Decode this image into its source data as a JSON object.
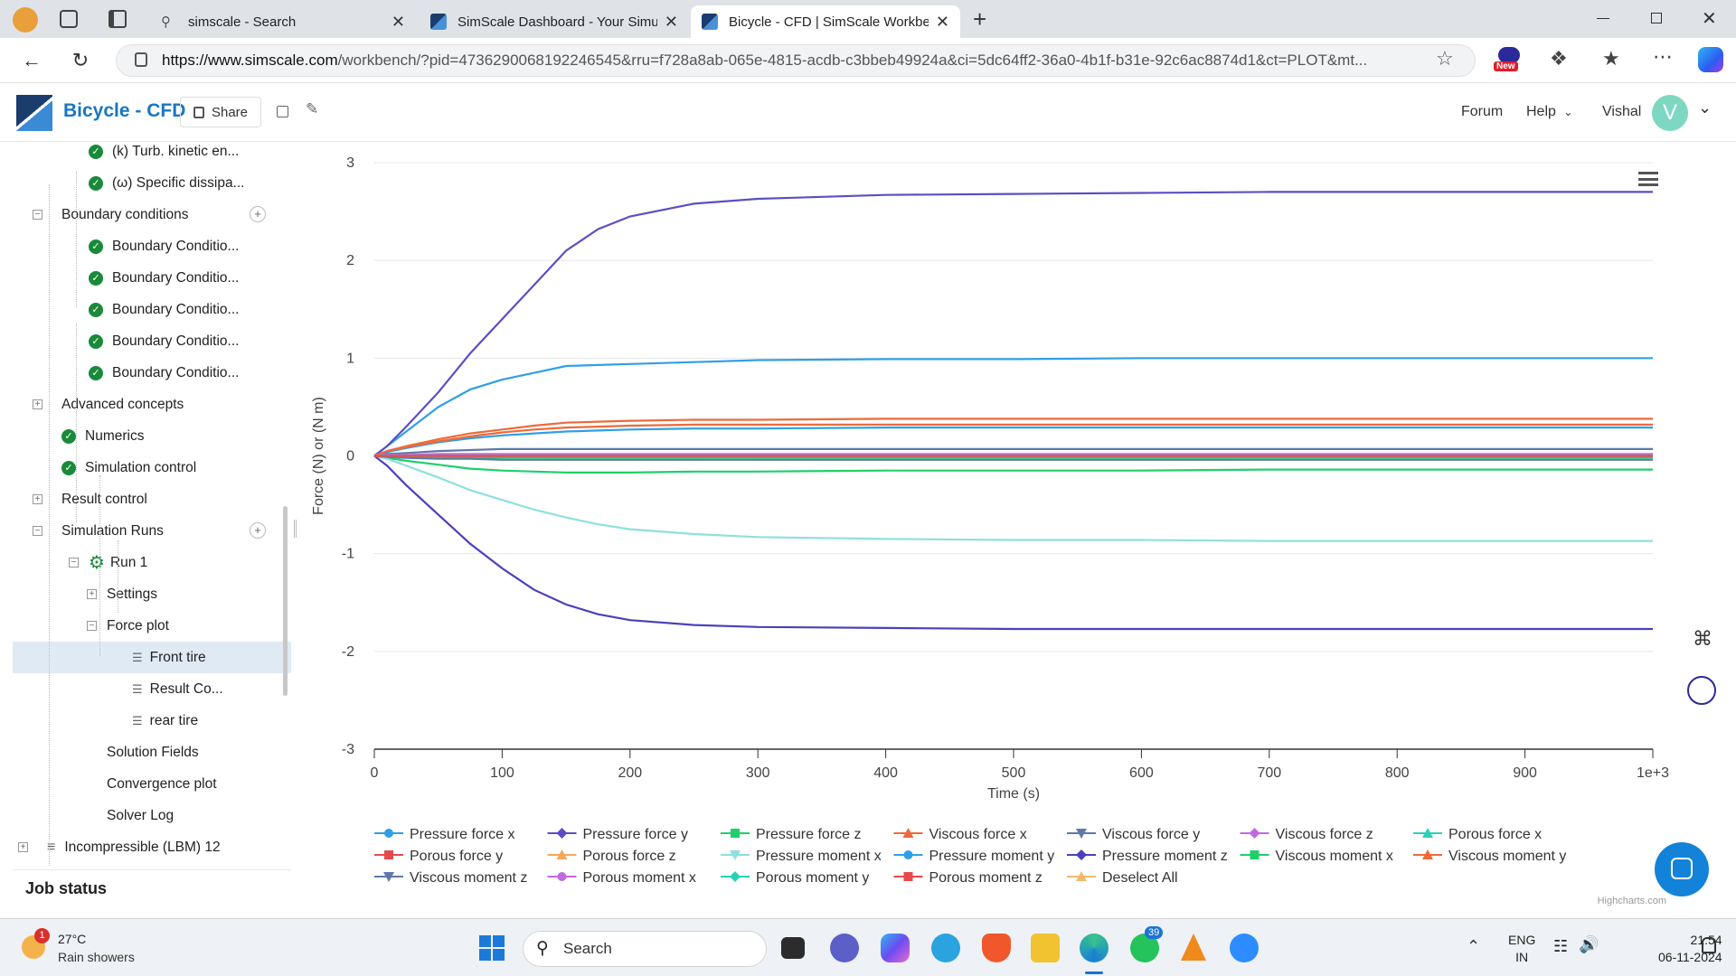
{
  "browser": {
    "tabs": [
      {
        "title": "simscale - Search",
        "icon": "search-icon"
      },
      {
        "title": "SimScale Dashboard - Your Simul",
        "icon": "simscale-logo-icon"
      },
      {
        "title": "Bicycle - CFD | SimScale Workben",
        "icon": "simscale-logo-icon",
        "active": true
      }
    ],
    "url_host": "https://www.simscale.com",
    "url_rest": "/workbench/?pid=4736290068192246545&rru=f728a8ab-065e-4815-acdb-c3bbeb49924a&ci=5dc64ff2-36a0-4b1f-b31e-92c6ac8874d1&ct=PLOT&mt...",
    "new_badge": "New"
  },
  "app": {
    "title": "Bicycle - CFD",
    "share_label": "Share",
    "forum_label": "Forum",
    "help_label": "Help",
    "user_name": "Vishal",
    "avatar_letter": "V"
  },
  "tree": {
    "items": [
      {
        "label": "(k) Turb. kinetic en...",
        "level": 3,
        "check": true
      },
      {
        "label": "(ω) Specific dissipa...",
        "level": 3,
        "check": true
      },
      {
        "label": "Boundary conditions",
        "level": 2,
        "toggle": "-",
        "add": true
      },
      {
        "label": "Boundary Conditio...",
        "level": 3,
        "check": true
      },
      {
        "label": "Boundary Conditio...",
        "level": 3,
        "check": true
      },
      {
        "label": "Boundary Conditio...",
        "level": 3,
        "check": true
      },
      {
        "label": "Boundary Conditio...",
        "level": 3,
        "check": true
      },
      {
        "label": "Boundary Conditio...",
        "level": 3,
        "check": true
      },
      {
        "label": "Advanced concepts",
        "level": 2,
        "toggle": "+"
      },
      {
        "label": "Numerics",
        "level": 2,
        "check": true
      },
      {
        "label": "Simulation control",
        "level": 2,
        "check": true
      },
      {
        "label": "Result control",
        "level": 2,
        "toggle": "+"
      },
      {
        "label": "Simulation Runs",
        "level": 2,
        "toggle": "-",
        "add": true
      },
      {
        "label": "Run 1",
        "level": 3,
        "toggle": "-",
        "gear": true
      },
      {
        "label": "Settings",
        "level": 4,
        "toggle": "+"
      },
      {
        "label": "Force plot",
        "level": 4,
        "toggle": "-"
      },
      {
        "label": "Front tire",
        "level": 5,
        "plot": true,
        "selected": true
      },
      {
        "label": "Result Co...",
        "level": 5,
        "plot": true
      },
      {
        "label": "rear tire",
        "level": 5,
        "plot": true
      },
      {
        "label": "Solution Fields",
        "level": 4
      },
      {
        "label": "Convergence plot",
        "level": 4
      },
      {
        "label": "Solver Log",
        "level": 4
      },
      {
        "label": "Incompressible (LBM) 12",
        "level": 1,
        "toggle": "+",
        "list": true
      }
    ],
    "job_status": "Job status"
  },
  "chart_data": {
    "type": "line",
    "title": "",
    "xlabel": "Time (s)",
    "ylabel": "Force (N) or (N m)",
    "xlim": [
      0,
      1000
    ],
    "ylim": [
      -3,
      3
    ],
    "x_ticks": [
      "0",
      "100",
      "200",
      "300",
      "400",
      "500",
      "600",
      "700",
      "800",
      "900",
      "1e+3"
    ],
    "y_ticks": [
      "-3",
      "-2",
      "-1",
      "0",
      "1",
      "2",
      "3"
    ],
    "grid": "horizontal",
    "legend_position": "bottom",
    "credit": "Highcharts.com",
    "x": [
      0,
      10,
      25,
      50,
      75,
      100,
      125,
      150,
      175,
      200,
      250,
      300,
      400,
      500,
      600,
      700,
      800,
      900,
      1000
    ],
    "series": [
      {
        "name": "Pressure force x",
        "color": "#2f9fe8",
        "marker": "circle",
        "values": [
          0,
          0.1,
          0.25,
          0.5,
          0.68,
          0.78,
          0.85,
          0.92,
          0.93,
          0.94,
          0.96,
          0.98,
          0.99,
          0.99,
          1.0,
          1.0,
          1.0,
          1.0,
          1.0
        ]
      },
      {
        "name": "Pressure force y",
        "color": "#5a4fc4",
        "marker": "diamond",
        "values": [
          0,
          0.1,
          0.3,
          0.65,
          1.05,
          1.4,
          1.75,
          2.1,
          2.32,
          2.45,
          2.58,
          2.63,
          2.67,
          2.68,
          2.69,
          2.7,
          2.7,
          2.7,
          2.7
        ]
      },
      {
        "name": "Pressure force z",
        "color": "#1fcf6a",
        "marker": "square",
        "values": [
          0,
          -0.02,
          -0.05,
          -0.09,
          -0.13,
          -0.15,
          -0.16,
          -0.17,
          -0.17,
          -0.17,
          -0.16,
          -0.16,
          -0.15,
          -0.15,
          -0.15,
          -0.14,
          -0.14,
          -0.14,
          -0.14
        ]
      },
      {
        "name": "Viscous force x",
        "color": "#ee6a3a",
        "marker": "triangle",
        "values": [
          0,
          0.05,
          0.1,
          0.17,
          0.23,
          0.27,
          0.31,
          0.34,
          0.35,
          0.36,
          0.37,
          0.37,
          0.38,
          0.38,
          0.38,
          0.38,
          0.38,
          0.38,
          0.38
        ]
      },
      {
        "name": "Viscous force y",
        "color": "#5f78a8",
        "marker": "triangle-down",
        "values": [
          0,
          0.02,
          0.03,
          0.05,
          0.06,
          0.07,
          0.07,
          0.07,
          0.07,
          0.07,
          0.07,
          0.07,
          0.07,
          0.07,
          0.07,
          0.07,
          0.07,
          0.07,
          0.07
        ]
      },
      {
        "name": "Viscous force z",
        "color": "#c06ae0",
        "marker": "diamond",
        "values": [
          0,
          0.01,
          0.01,
          0.02,
          0.02,
          0.02,
          0.02,
          0.02,
          0.02,
          0.02,
          0.02,
          0.02,
          0.02,
          0.02,
          0.02,
          0.02,
          0.02,
          0.02,
          0.02
        ]
      },
      {
        "name": "Porous force x",
        "color": "#2ad1b9",
        "marker": "triangle",
        "values": [
          0,
          0,
          0,
          0,
          0,
          0,
          0,
          0,
          0,
          0,
          0,
          0,
          0,
          0,
          0,
          0,
          0,
          0,
          0
        ]
      },
      {
        "name": "Porous force y",
        "color": "#e84a4a",
        "marker": "square",
        "values": [
          0,
          0,
          0,
          0,
          0,
          0,
          0,
          0,
          0,
          0,
          0,
          0,
          0,
          0,
          0,
          0,
          0,
          0,
          0
        ]
      },
      {
        "name": "Porous force z",
        "color": "#f4a85a",
        "marker": "triangle",
        "values": [
          0,
          0,
          0,
          0,
          0,
          0,
          0,
          0,
          0,
          0,
          0,
          0,
          0,
          0,
          0,
          0,
          0,
          0,
          0
        ]
      },
      {
        "name": "Pressure moment x",
        "color": "#8ee0dc",
        "marker": "triangle-down",
        "values": [
          0,
          -0.03,
          -0.1,
          -0.22,
          -0.35,
          -0.45,
          -0.55,
          -0.63,
          -0.7,
          -0.75,
          -0.8,
          -0.83,
          -0.85,
          -0.86,
          -0.86,
          -0.87,
          -0.87,
          -0.87,
          -0.87
        ]
      },
      {
        "name": "Pressure moment y",
        "color": "#2f9fe8",
        "marker": "circle",
        "values": [
          0,
          0.04,
          0.08,
          0.14,
          0.18,
          0.21,
          0.23,
          0.25,
          0.26,
          0.27,
          0.28,
          0.28,
          0.29,
          0.29,
          0.29,
          0.29,
          0.29,
          0.29,
          0.29
        ]
      },
      {
        "name": "Pressure moment z",
        "color": "#4a40bc",
        "marker": "diamond",
        "values": [
          0,
          -0.1,
          -0.3,
          -0.6,
          -0.9,
          -1.15,
          -1.37,
          -1.52,
          -1.62,
          -1.68,
          -1.73,
          -1.75,
          -1.76,
          -1.77,
          -1.77,
          -1.77,
          -1.77,
          -1.77,
          -1.77
        ]
      },
      {
        "name": "Viscous moment x",
        "color": "#1fcf6a",
        "marker": "square",
        "values": [
          0,
          -0.01,
          -0.01,
          -0.02,
          -0.02,
          -0.02,
          -0.02,
          -0.02,
          -0.02,
          -0.02,
          -0.02,
          -0.02,
          -0.02,
          -0.02,
          -0.02,
          -0.02,
          -0.02,
          -0.02,
          -0.02
        ]
      },
      {
        "name": "Viscous moment y",
        "color": "#ee6a3a",
        "marker": "triangle",
        "values": [
          0,
          0.05,
          0.09,
          0.15,
          0.2,
          0.24,
          0.27,
          0.29,
          0.3,
          0.31,
          0.32,
          0.32,
          0.32,
          0.32,
          0.32,
          0.32,
          0.32,
          0.32,
          0.32
        ]
      },
      {
        "name": "Viscous moment z",
        "color": "#5f78a8",
        "marker": "triangle-down",
        "values": [
          0,
          -0.01,
          -0.02,
          -0.03,
          -0.03,
          -0.04,
          -0.04,
          -0.04,
          -0.04,
          -0.04,
          -0.04,
          -0.04,
          -0.04,
          -0.04,
          -0.04,
          -0.04,
          -0.04,
          -0.04,
          -0.04
        ]
      },
      {
        "name": "Porous moment x",
        "color": "#c06ae0",
        "marker": "circle",
        "values": [
          0,
          0,
          0,
          0,
          0,
          0,
          0,
          0,
          0,
          0,
          0,
          0,
          0,
          0,
          0,
          0,
          0,
          0,
          0
        ]
      },
      {
        "name": "Porous moment y",
        "color": "#2ad1b9",
        "marker": "diamond",
        "values": [
          0,
          0,
          0,
          0,
          0,
          0,
          0,
          0,
          0,
          0,
          0,
          0,
          0,
          0,
          0,
          0,
          0,
          0,
          0
        ]
      },
      {
        "name": "Porous moment z",
        "color": "#e84a4a",
        "marker": "square",
        "values": [
          0,
          0,
          0,
          0,
          0,
          0,
          0,
          0,
          0,
          0,
          0,
          0,
          0,
          0,
          0,
          0,
          0,
          0,
          0
        ]
      }
    ],
    "deselect_label": "Deselect All",
    "deselect_color": "#f4b870"
  },
  "taskbar": {
    "weather_temp": "27°C",
    "weather_desc": "Rain showers",
    "weather_badge": "1",
    "search_label": "Search",
    "whatsapp_badge": "39",
    "lang_top": "ENG",
    "lang_bottom": "IN",
    "time": "21:54",
    "date": "06-11-2024"
  }
}
